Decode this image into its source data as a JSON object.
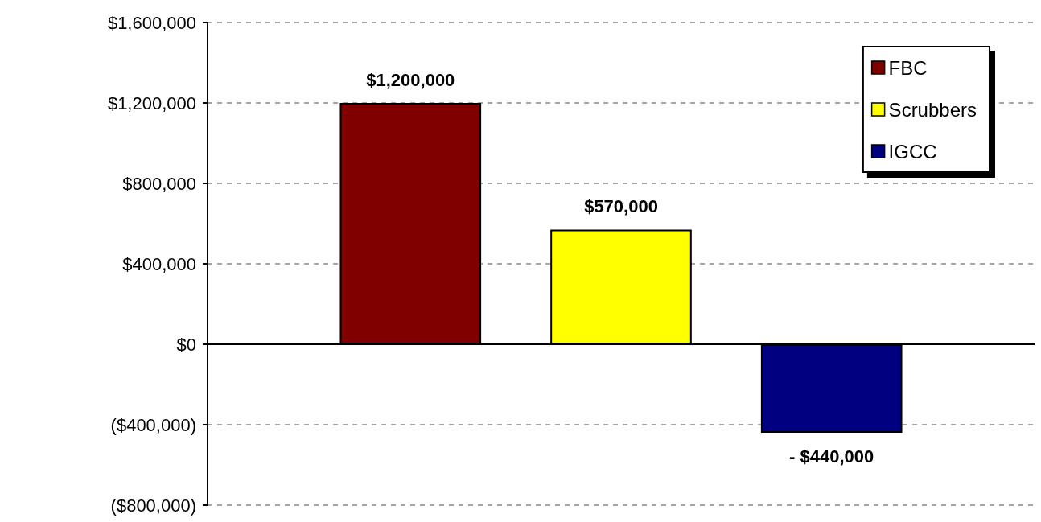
{
  "chart_data": {
    "type": "bar",
    "categories": [
      null
    ],
    "series": [
      {
        "name": "FBC",
        "color": "#800000",
        "values": [
          1200000
        ],
        "value_labels": [
          "$1,200,000"
        ]
      },
      {
        "name": "Scrubbers",
        "color": "#ffff00",
        "values": [
          570000
        ],
        "value_labels": [
          "$570,000"
        ]
      },
      {
        "name": "IGCC",
        "color": "#000080",
        "values": [
          -440000
        ],
        "value_labels": [
          "- $440,000"
        ]
      }
    ],
    "ylim": [
      -800000,
      1600000
    ],
    "yticks": [
      {
        "value": -800000,
        "label": "($800,000)"
      },
      {
        "value": -400000,
        "label": "($400,000)"
      },
      {
        "value": 0,
        "label": "$0"
      },
      {
        "value": 400000,
        "label": "$400,000"
      },
      {
        "value": 800000,
        "label": "$800,000"
      },
      {
        "value": 1200000,
        "label": "$1,200,000"
      },
      {
        "value": 1600000,
        "label": "$1,600,000"
      }
    ],
    "grid": "y",
    "legend": "top right",
    "tick_labels": "y"
  }
}
